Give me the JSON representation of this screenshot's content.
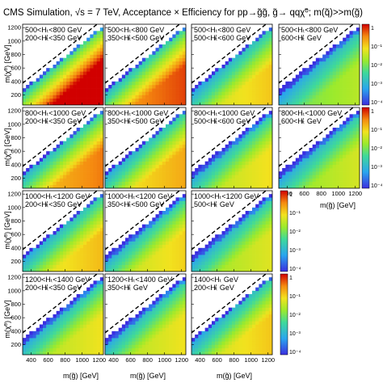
{
  "title": "CMS Simulation, √s = 7 TeV, Acceptance × Efficiency for pp→g̃g̃, g̃→ qqχ̃⁰; m(q̃)>>m(g̃)",
  "chart_data": {
    "type": "heatmap",
    "xlabel": "m(g̃) [GeV]",
    "ylabel": "m(χ̃⁰) [GeV]",
    "xlim": [
      300,
      1250
    ],
    "ylim": [
      50,
      1250
    ],
    "x_ticks": [
      400,
      600,
      800,
      1000,
      1200
    ],
    "x_tick_labels": [
      "400",
      "600",
      "800",
      "1000",
      "1200"
    ],
    "y_ticks": [
      200,
      400,
      600,
      800,
      1000,
      1200
    ],
    "y_tick_labels": [
      "200",
      "400",
      "600",
      "800",
      "1000",
      "1200"
    ],
    "colorbar": {
      "scale": "log",
      "range": [
        0.0001,
        1
      ],
      "tick_labels": [
        "1",
        "10⁻¹",
        "10⁻²",
        "10⁻³",
        "10⁻⁴"
      ]
    },
    "diagonal_dashed_line": "m(χ̃⁰) = m(g̃)",
    "panels": [
      {
        "label_line1": "500<Hₜ<800 GeV",
        "label_line2": "200<H̸ₜ<350 GeV",
        "level": 0.95
      },
      {
        "label_line1": "500<Hₜ<800 GeV",
        "label_line2": "350<H̸ₜ<500 GeV",
        "level": 0.78
      },
      {
        "label_line1": "500<Hₜ<800 GeV",
        "label_line2": "500<H̸ₜ<600 GeV",
        "level": 0.6
      },
      {
        "label_line1": "500<Hₜ<800 GeV",
        "label_line2": "600<H̸ₜ GeV",
        "level": 0.45
      },
      {
        "label_line1": "800<Hₜ<1000 GeV",
        "label_line2": "200<H̸ₜ<350 GeV",
        "level": 0.72
      },
      {
        "label_line1": "800<Hₜ<1000 GeV",
        "label_line2": "350<H̸ₜ<500 GeV",
        "level": 0.65
      },
      {
        "label_line1": "800<Hₜ<1000 GeV",
        "label_line2": "500<H̸ₜ<600 GeV",
        "level": 0.56
      },
      {
        "label_line1": "800<Hₜ<1000 GeV",
        "label_line2": "600<H̸ₜ GeV",
        "level": 0.5
      },
      {
        "label_line1": "1000<Hₜ<1200 GeV",
        "label_line2": "200<H̸ₜ<350 GeV",
        "level": 0.62
      },
      {
        "label_line1": "1000<Hₜ<1200 GeV",
        "label_line2": "350<H̸ₜ<500 GeV",
        "level": 0.58
      },
      {
        "label_line1": "1000<Hₜ<1200 GeV",
        "label_line2": "500<H̸ₜ GeV",
        "level": 0.52
      },
      {
        "label_line1": "1200<Hₜ<1400 GeV",
        "label_line2": "200<H̸ₜ<350 GeV",
        "level": 0.55
      },
      {
        "label_line1": "1200<Hₜ<1400 GeV",
        "label_line2": "350<H̸ₜ GeV",
        "level": 0.55
      },
      {
        "label_line1": "1400<Hₜ GeV",
        "label_line2": "200<H̸ₜ GeV",
        "level": 0.6
      }
    ]
  }
}
